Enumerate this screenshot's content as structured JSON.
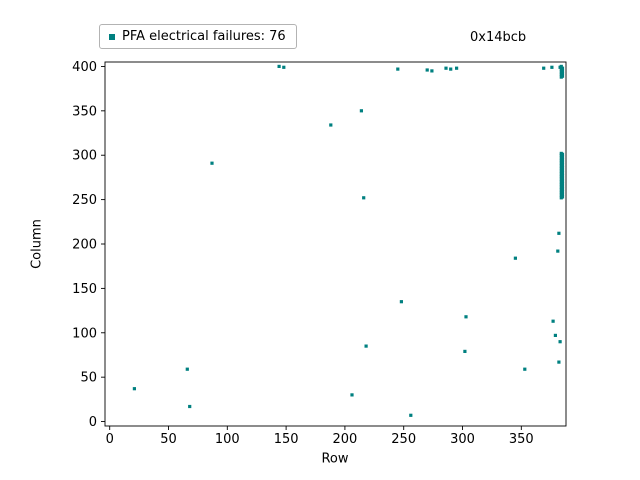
{
  "chart_data": {
    "type": "scatter",
    "title": "0x14bcb",
    "legend_label": "PFA electrical failures: 76",
    "legend_position": "top-left-above-axes",
    "xlabel": "Row",
    "ylabel": "Column",
    "marker": "square",
    "marker_color": "#008080",
    "grid": false,
    "xlim": [
      -4,
      388
    ],
    "ylim": [
      -5,
      405
    ],
    "xticks": [
      0,
      50,
      100,
      150,
      200,
      250,
      300,
      350
    ],
    "yticks": [
      0,
      50,
      100,
      150,
      200,
      250,
      300,
      350,
      400
    ],
    "points": [
      [
        21,
        37
      ],
      [
        66,
        59
      ],
      [
        68,
        17
      ],
      [
        87,
        291
      ],
      [
        144,
        400
      ],
      [
        148,
        399
      ],
      [
        188,
        334
      ],
      [
        206,
        30
      ],
      [
        214,
        350
      ],
      [
        216,
        252
      ],
      [
        218,
        85
      ],
      [
        245,
        397
      ],
      [
        248,
        135
      ],
      [
        256,
        7
      ],
      [
        270,
        396
      ],
      [
        274,
        395
      ],
      [
        286,
        398
      ],
      [
        290,
        397
      ],
      [
        295,
        398
      ],
      [
        302,
        79
      ],
      [
        303,
        118
      ],
      [
        345,
        184
      ],
      [
        353,
        59
      ],
      [
        369,
        398
      ],
      [
        376,
        399
      ],
      [
        377,
        113
      ],
      [
        379,
        97
      ],
      [
        381,
        192
      ],
      [
        382,
        212
      ],
      [
        382,
        67
      ],
      [
        383,
        90
      ],
      [
        383,
        399
      ],
      [
        384,
        388
      ],
      [
        384,
        391
      ],
      [
        384,
        394
      ],
      [
        384,
        397
      ],
      [
        384,
        400
      ],
      [
        385,
        389
      ],
      [
        385,
        392
      ],
      [
        385,
        395
      ],
      [
        385,
        398
      ],
      [
        384,
        252
      ],
      [
        385,
        253
      ],
      [
        384,
        255
      ],
      [
        385,
        256
      ],
      [
        384,
        258
      ],
      [
        385,
        259
      ],
      [
        384,
        261
      ],
      [
        385,
        262
      ],
      [
        384,
        264
      ],
      [
        385,
        265
      ],
      [
        384,
        267
      ],
      [
        385,
        268
      ],
      [
        384,
        270
      ],
      [
        385,
        271
      ],
      [
        384,
        273
      ],
      [
        385,
        274
      ],
      [
        384,
        276
      ],
      [
        385,
        277
      ],
      [
        384,
        279
      ],
      [
        385,
        280
      ],
      [
        384,
        282
      ],
      [
        385,
        283
      ],
      [
        384,
        285
      ],
      [
        385,
        286
      ],
      [
        384,
        288
      ],
      [
        385,
        289
      ],
      [
        384,
        291
      ],
      [
        385,
        292
      ],
      [
        384,
        294
      ],
      [
        385,
        295
      ],
      [
        384,
        297
      ],
      [
        385,
        298
      ],
      [
        384,
        300
      ],
      [
        385,
        301
      ],
      [
        384,
        302
      ]
    ]
  }
}
